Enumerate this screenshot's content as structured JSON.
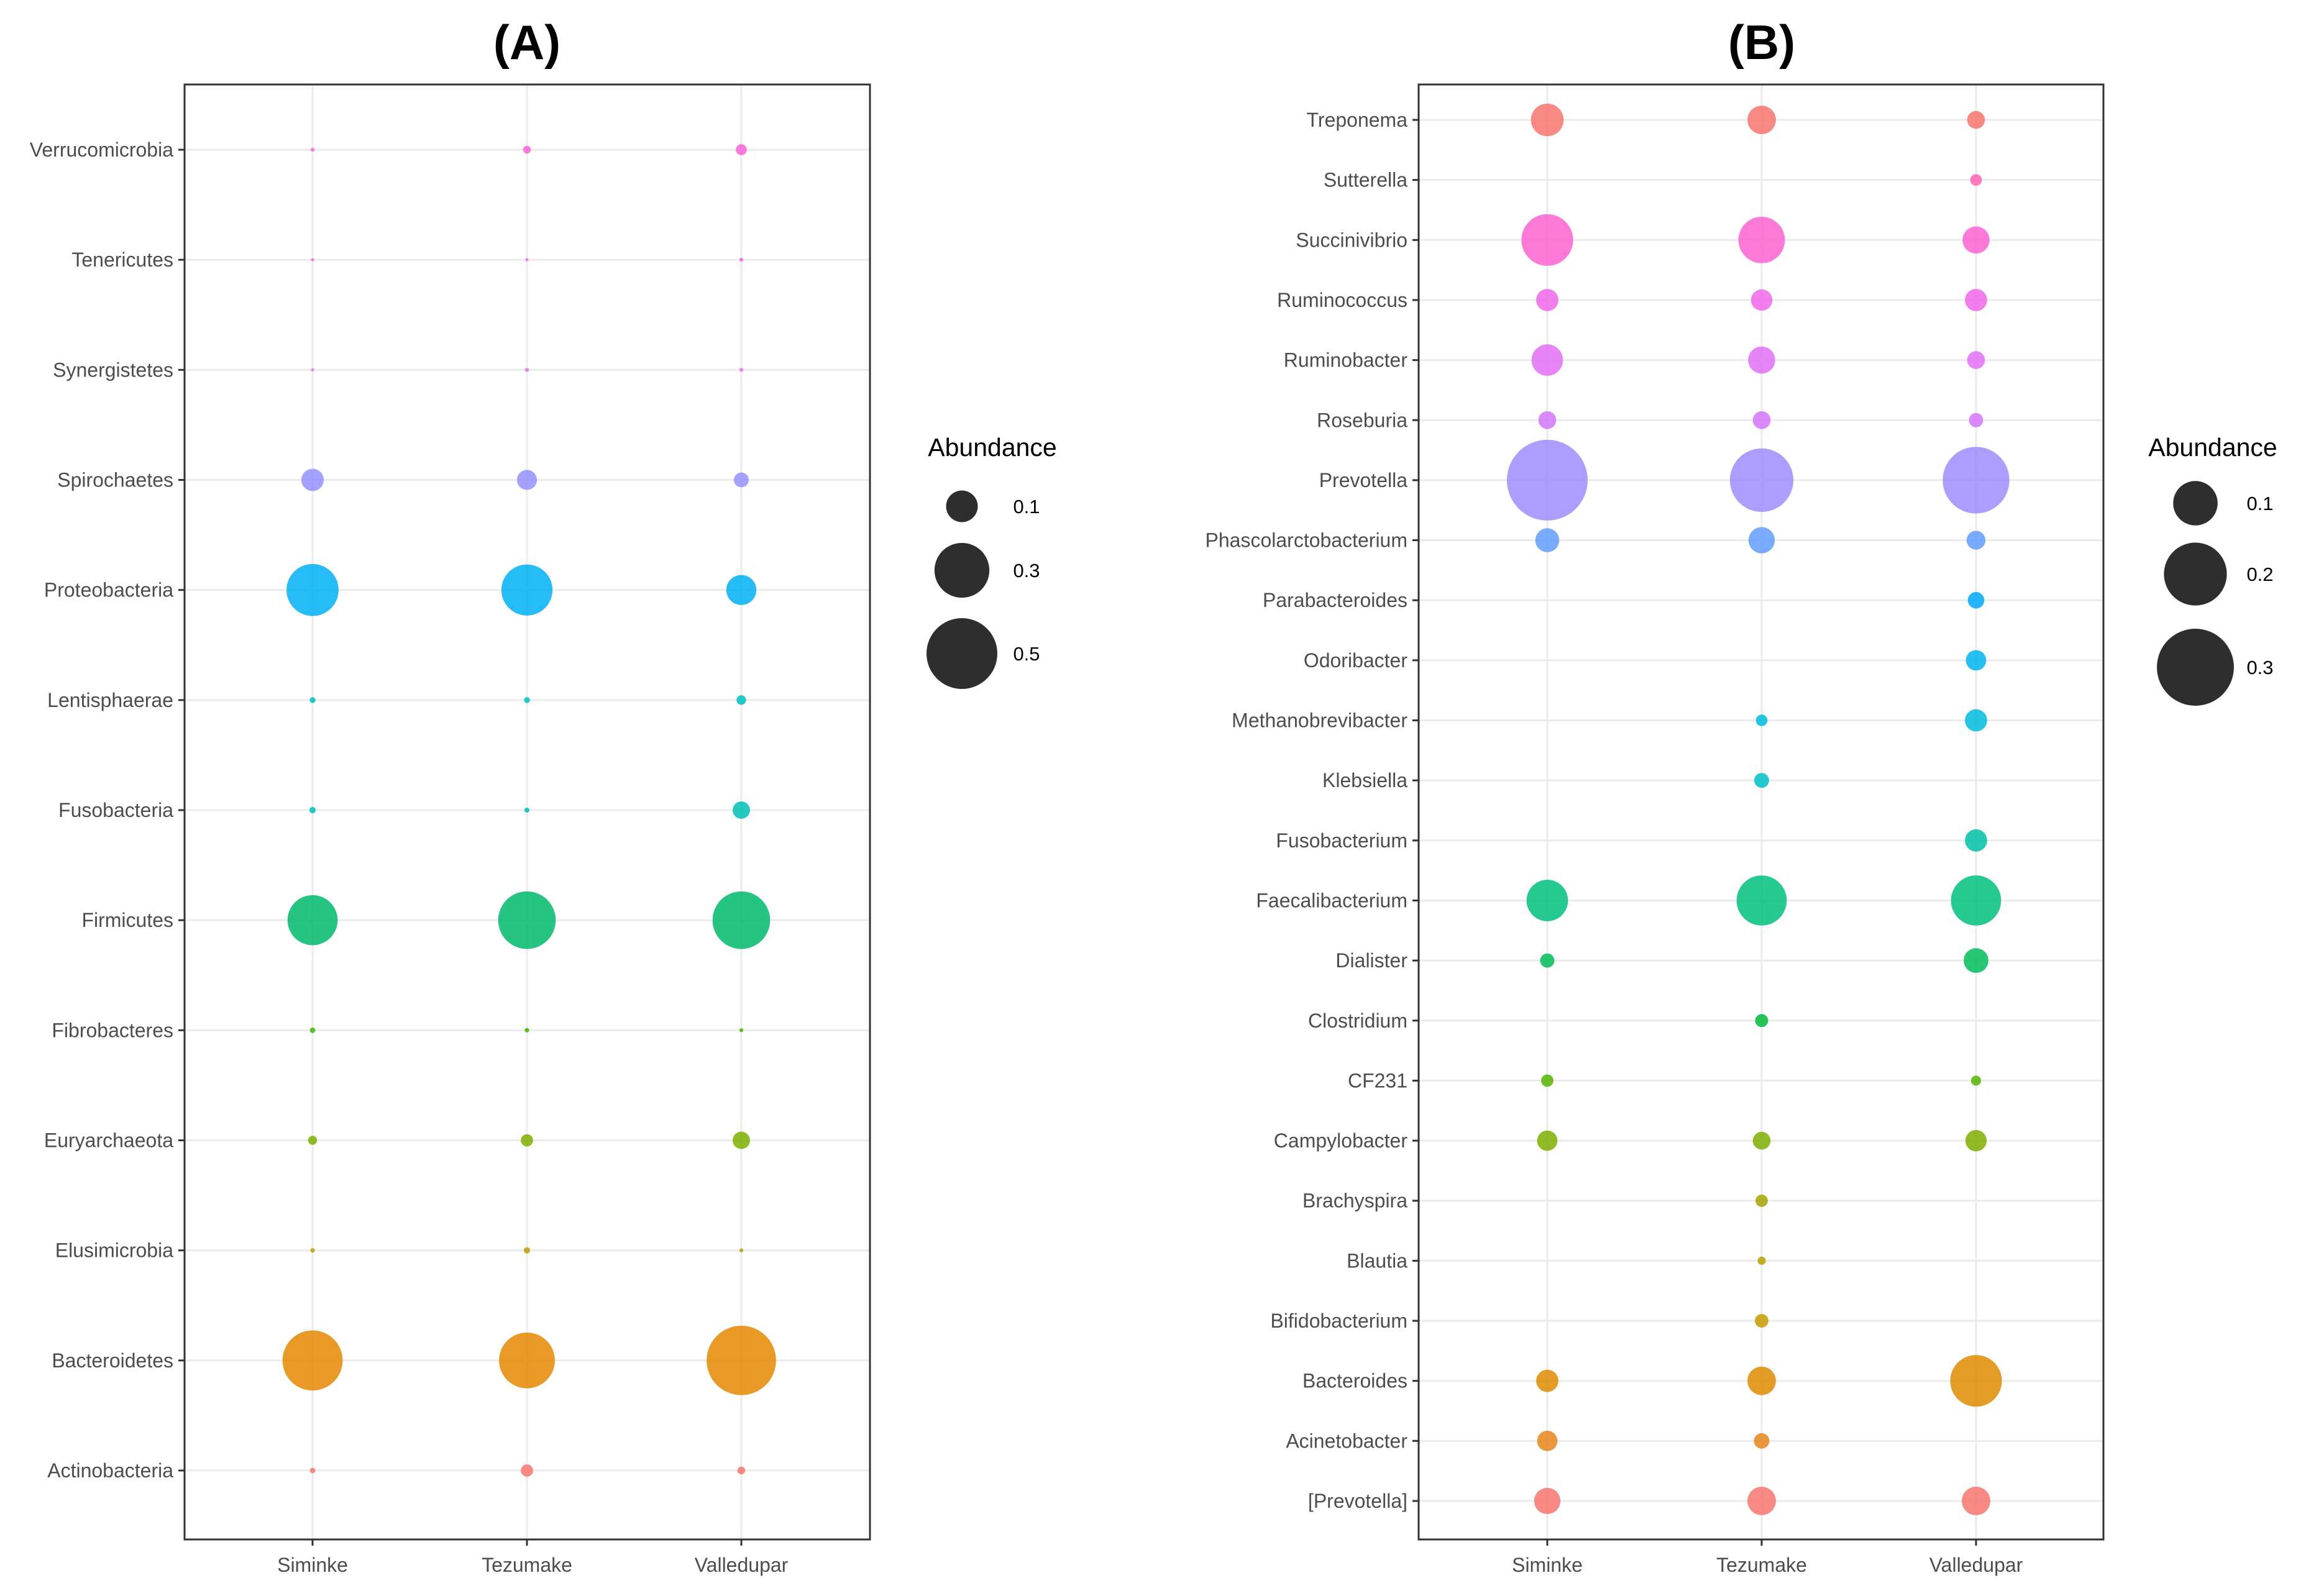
{
  "chart_data": [
    {
      "type": "bubble",
      "title": "(A)",
      "xlabel": "",
      "ylabel": "",
      "grid": true,
      "legend_position": "right",
      "categories": [
        "Siminke",
        "Tezumake",
        "Valledupar"
      ],
      "rows": [
        "Verrucomicrobia",
        "Tenericutes",
        "Synergistetes",
        "Spirochaetes",
        "Proteobacteria",
        "Lentisphaerae",
        "Fusobacteria",
        "Firmicutes",
        "Fibrobacteres",
        "Euryarchaeota",
        "Elusimicrobia",
        "Bacteroidetes",
        "Actinobacteria"
      ],
      "colors": [
        "#FB61D7",
        "#F564E3",
        "#E76BF3",
        "#9590FF",
        "#00B0F6",
        "#00BFC4",
        "#00BFB5",
        "#00BA6B",
        "#39B600",
        "#7CAE00",
        "#BB9D00",
        "#E58700",
        "#F8766D"
      ],
      "values": [
        [
          0.0015,
          0.006,
          0.012
        ],
        [
          0.0008,
          0.0008,
          0.0015
        ],
        [
          0.0008,
          0.0015,
          0.0015
        ],
        [
          0.05,
          0.04,
          0.022
        ],
        [
          0.27,
          0.26,
          0.09
        ],
        [
          0.0035,
          0.0035,
          0.009
        ],
        [
          0.004,
          0.0025,
          0.03
        ],
        [
          0.25,
          0.33,
          0.33
        ],
        [
          0.003,
          0.002,
          0.0015
        ],
        [
          0.008,
          0.015,
          0.03
        ],
        [
          0.002,
          0.004,
          0.0015
        ],
        [
          0.36,
          0.31,
          0.48
        ],
        [
          0.003,
          0.015,
          0.006
        ]
      ],
      "size_legend": {
        "title": "Abundance",
        "breaks": [
          0.1,
          0.3,
          0.5
        ],
        "labels": [
          "0.1",
          "0.3",
          "0.5"
        ]
      }
    },
    {
      "type": "bubble",
      "title": "(B)",
      "xlabel": "",
      "ylabel": "",
      "grid": true,
      "legend_position": "right",
      "categories": [
        "Siminke",
        "Tezumake",
        "Valledupar"
      ],
      "rows": [
        "Treponema",
        "Sutterella",
        "Succinivibrio",
        "Ruminococcus",
        "Ruminobacter",
        "Roseburia",
        "Prevotella",
        "Phascolarctobacterium",
        "Parabacteroides",
        "Odoribacter",
        "Methanobrevibacter",
        "Klebsiella",
        "Fusobacterium",
        "Faecalibacterium",
        "Dialister",
        "Clostridium",
        "CF231",
        "Campylobacter",
        "Brachyspira",
        "Blautia",
        "Bifidobacterium",
        "Bacteroides",
        "Acinetobacter",
        "[Prevotella]"
      ],
      "colors": [
        "#F8766D",
        "#FF64B0",
        "#FD61D1",
        "#F066EA",
        "#E36EF6",
        "#D575FE",
        "#9F8CFF",
        "#619CFF",
        "#00A9FF",
        "#00B4F0",
        "#00BBDC",
        "#00BFC4",
        "#00C1A7",
        "#00BF7D",
        "#00BC59",
        "#00BA38",
        "#53B400",
        "#7CAE00",
        "#A3A500",
        "#B79F00",
        "#C49A00",
        "#DE8C00",
        "#E7861B",
        "#F8766D"
      ],
      "values": [
        [
          0.054,
          0.041,
          0.016
        ],
        [
          null,
          null,
          0.0068
        ],
        [
          0.135,
          0.109,
          0.037
        ],
        [
          0.025,
          0.023,
          0.025
        ],
        [
          0.05,
          0.037,
          0.016
        ],
        [
          0.016,
          0.016,
          0.0103
        ],
        [
          0.33,
          0.204,
          0.225
        ],
        [
          0.029,
          0.035,
          0.018
        ],
        [
          null,
          null,
          0.0138
        ],
        [
          null,
          null,
          0.021
        ],
        [
          null,
          0.0068,
          0.025
        ],
        [
          null,
          0.0112,
          null
        ],
        [
          null,
          null,
          0.025
        ],
        [
          0.087,
          0.127,
          0.127
        ],
        [
          0.0103,
          null,
          0.031
        ],
        [
          null,
          0.0086,
          null
        ],
        [
          0.0077,
          null,
          0.0051
        ],
        [
          0.021,
          0.016,
          0.023
        ],
        [
          null,
          0.0077,
          null
        ],
        [
          null,
          0.0034,
          null
        ],
        [
          null,
          0.0094,
          null
        ],
        [
          0.025,
          0.041,
          0.135
        ],
        [
          0.021,
          0.0121,
          null
        ],
        [
          0.035,
          0.041,
          0.041
        ]
      ],
      "size_legend": {
        "title": "Abundance",
        "breaks": [
          0.1,
          0.2,
          0.3
        ],
        "labels": [
          "0.1",
          "0.2",
          "0.3"
        ]
      }
    }
  ]
}
